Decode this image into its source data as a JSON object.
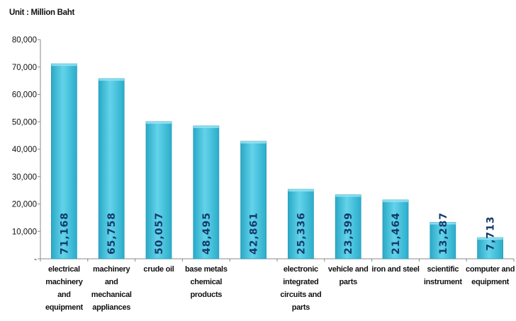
{
  "chart_data": {
    "type": "bar",
    "unit_label": "Unit : Million Baht",
    "categories": [
      [
        "electrical",
        "machinery",
        "and",
        "equipment"
      ],
      [
        "machinery",
        "and",
        "mechanical",
        "appliances"
      ],
      [
        "crude oil"
      ],
      [
        "base metals",
        "chemical",
        "products"
      ],
      [],
      [
        "electronic",
        "integrated",
        "circuits and",
        "parts"
      ],
      [
        "vehicle and",
        "parts"
      ],
      [
        "iron and steel"
      ],
      [
        "scientific",
        "instrument"
      ],
      [
        "computer and",
        "equipment"
      ]
    ],
    "values": [
      71168,
      65758,
      50057,
      48495,
      42861,
      25336,
      23399,
      21464,
      13287,
      7713
    ],
    "value_labels": [
      "71,168",
      "65,758",
      "50,057",
      "48,495",
      "42,861",
      "25,336",
      "23,399",
      "21,464",
      "13,287",
      "7,713"
    ],
    "ylim": [
      0,
      80000
    ],
    "yticks": [
      {
        "value": 0,
        "label": "-"
      },
      {
        "value": 10000,
        "label": "10,000"
      },
      {
        "value": 20000,
        "label": "20,000"
      },
      {
        "value": 30000,
        "label": "30,000"
      },
      {
        "value": 40000,
        "label": "40,000"
      },
      {
        "value": 50000,
        "label": "50,000"
      },
      {
        "value": 60000,
        "label": "60,000"
      },
      {
        "value": 70000,
        "label": "70,000"
      },
      {
        "value": 80000,
        "label": "80,000"
      }
    ],
    "bar_color": "#3fc0dc",
    "label_color": "#123a6b",
    "grid": false,
    "legend": "none"
  }
}
